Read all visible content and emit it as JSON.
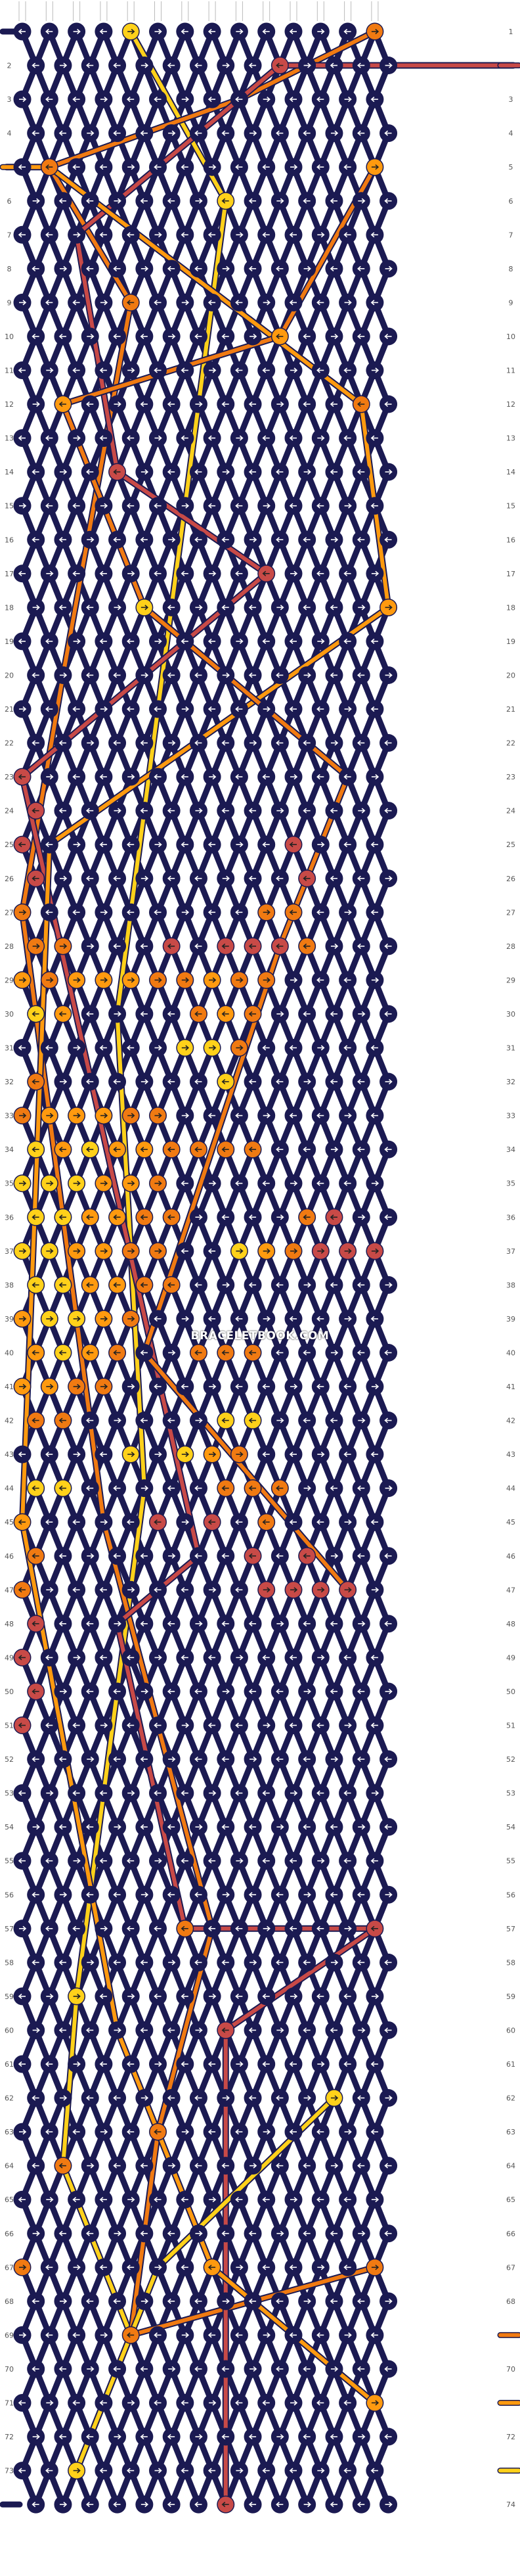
{
  "watermark": "BRACELETBOOK.COM",
  "row_numbers": [
    1,
    2,
    3,
    4,
    5,
    6,
    7,
    8,
    9,
    10,
    11,
    12,
    13,
    14,
    15,
    16,
    17,
    18,
    19,
    20,
    21,
    22,
    23,
    24,
    25,
    26,
    27,
    28,
    29,
    30,
    31,
    32,
    33,
    34,
    35,
    36,
    37,
    38,
    39,
    40,
    41,
    42,
    43,
    44,
    45,
    46,
    47,
    48,
    49,
    50,
    51,
    52,
    53,
    54,
    55,
    56,
    57,
    58,
    59,
    60,
    61,
    62,
    63,
    64,
    65,
    66,
    67,
    68,
    69,
    70,
    71,
    72,
    73,
    74
  ],
  "palette": {
    "navy": "#1b1a52",
    "orange": "#f07a12",
    "gold": "#ffd11a",
    "amber": "#ff9a0f",
    "coral": "#c84a47",
    "strand_light": "#eeeeee",
    "row_label": "#555555"
  },
  "knot_icons": [
    "arrow-right-icon",
    "arrow-left-icon",
    "forward-backward-icon",
    "backward-forward-icon"
  ],
  "knots": [
    {
      "row": 1,
      "col": 4,
      "color": "gold",
      "dir": "r"
    },
    {
      "row": 1,
      "col": 13,
      "color": "orange",
      "dir": "r"
    },
    {
      "row": 2,
      "col": 9,
      "color": "coral",
      "dir": "l"
    },
    {
      "row": 5,
      "col": 1,
      "color": "orange",
      "dir": "l"
    },
    {
      "row": 5,
      "col": 13,
      "color": "amber",
      "dir": "r"
    },
    {
      "row": 6,
      "col": 7,
      "color": "gold",
      "dir": "l"
    },
    {
      "row": 9,
      "col": 4,
      "color": "orange",
      "dir": "l"
    },
    {
      "row": 10,
      "col": 9,
      "color": "amber",
      "dir": "l"
    },
    {
      "row": 12,
      "col": 1,
      "color": "amber",
      "dir": "l"
    },
    {
      "row": 12,
      "col": 12,
      "color": "orange",
      "dir": "l"
    },
    {
      "row": 14,
      "col": 3,
      "color": "coral",
      "dir": "l"
    },
    {
      "row": 17,
      "col": 9,
      "color": "coral",
      "dir": "l"
    },
    {
      "row": 18,
      "col": 4,
      "color": "gold",
      "dir": "r"
    },
    {
      "row": 18,
      "col": 13,
      "color": "amber",
      "dir": "r"
    },
    {
      "row": 23,
      "col": 0,
      "color": "coral",
      "dir": "l"
    },
    {
      "row": 24,
      "col": 0,
      "color": "coral",
      "dir": "l"
    },
    {
      "row": 25,
      "col": 0,
      "color": "coral",
      "dir": "l"
    },
    {
      "row": 25,
      "col": 10,
      "color": "coral",
      "dir": "l"
    },
    {
      "row": 26,
      "col": 0,
      "color": "coral",
      "dir": "l"
    },
    {
      "row": 26,
      "col": 10,
      "color": "coral",
      "dir": "l"
    },
    {
      "row": 27,
      "col": 0,
      "color": "orange",
      "dir": "r"
    },
    {
      "row": 27,
      "col": 9,
      "color": "orange",
      "dir": "r"
    },
    {
      "row": 27,
      "col": 10,
      "color": "orange",
      "dir": "l"
    },
    {
      "row": 28,
      "col": 0,
      "color": "orange",
      "dir": "r"
    },
    {
      "row": 28,
      "col": 1,
      "color": "orange",
      "dir": "r"
    },
    {
      "row": 28,
      "col": 5,
      "color": "coral",
      "dir": "l"
    },
    {
      "row": 28,
      "col": 7,
      "color": "coral",
      "dir": "l"
    },
    {
      "row": 28,
      "col": 8,
      "color": "coral",
      "dir": "l"
    },
    {
      "row": 28,
      "col": 9,
      "color": "coral",
      "dir": "l"
    },
    {
      "row": 28,
      "col": 10,
      "color": "orange",
      "dir": "l"
    },
    {
      "row": 29,
      "col": 0,
      "color": "amber",
      "dir": "r"
    },
    {
      "row": 29,
      "col": 1,
      "color": "orange",
      "dir": "r"
    },
    {
      "row": 29,
      "col": 2,
      "color": "amber",
      "dir": "r"
    },
    {
      "row": 29,
      "col": 3,
      "color": "amber",
      "dir": "r"
    },
    {
      "row": 29,
      "col": 4,
      "color": "amber",
      "dir": "r"
    },
    {
      "row": 29,
      "col": 5,
      "color": "orange",
      "dir": "r"
    },
    {
      "row": 29,
      "col": 6,
      "color": "orange",
      "dir": "r"
    },
    {
      "row": 29,
      "col": 7,
      "color": "amber",
      "dir": "r"
    },
    {
      "row": 29,
      "col": 8,
      "color": "orange",
      "dir": "r"
    },
    {
      "row": 29,
      "col": 9,
      "color": "orange",
      "dir": "r"
    },
    {
      "row": 30,
      "col": 0,
      "color": "gold",
      "dir": "l"
    },
    {
      "row": 30,
      "col": 1,
      "color": "amber",
      "dir": "l"
    },
    {
      "row": 30,
      "col": 6,
      "color": "orange",
      "dir": "l"
    },
    {
      "row": 30,
      "col": 7,
      "color": "amber",
      "dir": "l"
    },
    {
      "row": 30,
      "col": 8,
      "color": "orange",
      "dir": "l"
    },
    {
      "row": 31,
      "col": 6,
      "color": "gold",
      "dir": "r"
    },
    {
      "row": 31,
      "col": 7,
      "color": "gold",
      "dir": "r"
    },
    {
      "row": 31,
      "col": 8,
      "color": "orange",
      "dir": "r"
    },
    {
      "row": 32,
      "col": 0,
      "color": "orange",
      "dir": "l"
    },
    {
      "row": 32,
      "col": 7,
      "color": "gold",
      "dir": "l"
    },
    {
      "row": 33,
      "col": 0,
      "color": "orange",
      "dir": "r"
    },
    {
      "row": 33,
      "col": 1,
      "color": "amber",
      "dir": "r"
    },
    {
      "row": 33,
      "col": 2,
      "color": "amber",
      "dir": "r"
    },
    {
      "row": 33,
      "col": 3,
      "color": "amber",
      "dir": "r"
    },
    {
      "row": 33,
      "col": 4,
      "color": "orange",
      "dir": "r"
    },
    {
      "row": 33,
      "col": 5,
      "color": "orange",
      "dir": "r"
    },
    {
      "row": 34,
      "col": 0,
      "color": "gold",
      "dir": "l"
    },
    {
      "row": 34,
      "col": 1,
      "color": "amber",
      "dir": "l"
    },
    {
      "row": 34,
      "col": 2,
      "color": "gold",
      "dir": "l"
    },
    {
      "row": 34,
      "col": 3,
      "color": "amber",
      "dir": "l"
    },
    {
      "row": 34,
      "col": 4,
      "color": "amber",
      "dir": "l"
    },
    {
      "row": 34,
      "col": 5,
      "color": "orange",
      "dir": "l"
    },
    {
      "row": 34,
      "col": 6,
      "color": "orange",
      "dir": "l"
    },
    {
      "row": 34,
      "col": 7,
      "color": "orange",
      "dir": "l"
    },
    {
      "row": 34,
      "col": 8,
      "color": "orange",
      "dir": "l"
    },
    {
      "row": 35,
      "col": 0,
      "color": "gold",
      "dir": "r"
    },
    {
      "row": 35,
      "col": 1,
      "color": "gold",
      "dir": "r"
    },
    {
      "row": 35,
      "col": 2,
      "color": "gold",
      "dir": "r"
    },
    {
      "row": 35,
      "col": 3,
      "color": "amber",
      "dir": "r"
    },
    {
      "row": 35,
      "col": 4,
      "color": "amber",
      "dir": "r"
    },
    {
      "row": 35,
      "col": 5,
      "color": "orange",
      "dir": "r"
    },
    {
      "row": 36,
      "col": 0,
      "color": "gold",
      "dir": "l"
    },
    {
      "row": 36,
      "col": 1,
      "color": "gold",
      "dir": "l"
    },
    {
      "row": 36,
      "col": 2,
      "color": "amber",
      "dir": "l"
    },
    {
      "row": 36,
      "col": 3,
      "color": "amber",
      "dir": "l"
    },
    {
      "row": 36,
      "col": 4,
      "color": "orange",
      "dir": "l"
    },
    {
      "row": 36,
      "col": 5,
      "color": "orange",
      "dir": "l"
    },
    {
      "row": 36,
      "col": 10,
      "color": "orange",
      "dir": "l"
    },
    {
      "row": 36,
      "col": 11,
      "color": "coral",
      "dir": "l"
    },
    {
      "row": 37,
      "col": 0,
      "color": "gold",
      "dir": "r"
    },
    {
      "row": 37,
      "col": 1,
      "color": "gold",
      "dir": "r"
    },
    {
      "row": 37,
      "col": 2,
      "color": "amber",
      "dir": "r"
    },
    {
      "row": 37,
      "col": 3,
      "color": "amber",
      "dir": "r"
    },
    {
      "row": 37,
      "col": 4,
      "color": "orange",
      "dir": "r"
    },
    {
      "row": 37,
      "col": 5,
      "color": "orange",
      "dir": "r"
    },
    {
      "row": 37,
      "col": 8,
      "color": "gold",
      "dir": "r"
    },
    {
      "row": 37,
      "col": 9,
      "color": "amber",
      "dir": "r"
    },
    {
      "row": 37,
      "col": 10,
      "color": "orange",
      "dir": "r"
    },
    {
      "row": 37,
      "col": 11,
      "color": "coral",
      "dir": "r"
    },
    {
      "row": 37,
      "col": 12,
      "color": "coral",
      "dir": "r"
    },
    {
      "row": 37,
      "col": 13,
      "color": "coral",
      "dir": "r"
    },
    {
      "row": 38,
      "col": 0,
      "color": "gold",
      "dir": "l"
    },
    {
      "row": 38,
      "col": 1,
      "color": "gold",
      "dir": "l"
    },
    {
      "row": 38,
      "col": 2,
      "color": "amber",
      "dir": "l"
    },
    {
      "row": 38,
      "col": 3,
      "color": "amber",
      "dir": "l"
    },
    {
      "row": 38,
      "col": 4,
      "color": "orange",
      "dir": "l"
    },
    {
      "row": 38,
      "col": 5,
      "color": "orange",
      "dir": "l"
    },
    {
      "row": 39,
      "col": 0,
      "color": "amber",
      "dir": "r"
    },
    {
      "row": 39,
      "col": 1,
      "color": "gold",
      "dir": "r"
    },
    {
      "row": 39,
      "col": 2,
      "color": "gold",
      "dir": "r"
    },
    {
      "row": 39,
      "col": 3,
      "color": "amber",
      "dir": "r"
    },
    {
      "row": 39,
      "col": 4,
      "color": "orange",
      "dir": "r"
    },
    {
      "row": 40,
      "col": 0,
      "color": "amber",
      "dir": "l"
    },
    {
      "row": 40,
      "col": 1,
      "color": "gold",
      "dir": "l"
    },
    {
      "row": 40,
      "col": 2,
      "color": "amber",
      "dir": "l"
    },
    {
      "row": 40,
      "col": 3,
      "color": "orange",
      "dir": "l"
    },
    {
      "row": 40,
      "col": 6,
      "color": "orange",
      "dir": "l"
    },
    {
      "row": 40,
      "col": 7,
      "color": "orange",
      "dir": "l"
    },
    {
      "row": 40,
      "col": 8,
      "color": "orange",
      "dir": "l"
    },
    {
      "row": 41,
      "col": 0,
      "color": "amber",
      "dir": "r"
    },
    {
      "row": 41,
      "col": 1,
      "color": "amber",
      "dir": "r"
    },
    {
      "row": 41,
      "col": 2,
      "color": "orange",
      "dir": "r"
    },
    {
      "row": 41,
      "col": 3,
      "color": "orange",
      "dir": "r"
    },
    {
      "row": 42,
      "col": 0,
      "color": "orange",
      "dir": "l"
    },
    {
      "row": 42,
      "col": 1,
      "color": "orange",
      "dir": "l"
    },
    {
      "row": 42,
      "col": 7,
      "color": "gold",
      "dir": "l"
    },
    {
      "row": 42,
      "col": 8,
      "color": "gold",
      "dir": "l"
    },
    {
      "row": 43,
      "col": 4,
      "color": "gold",
      "dir": "r"
    },
    {
      "row": 43,
      "col": 6,
      "color": "gold",
      "dir": "r"
    },
    {
      "row": 43,
      "col": 7,
      "color": "amber",
      "dir": "r"
    },
    {
      "row": 43,
      "col": 8,
      "color": "orange",
      "dir": "r"
    },
    {
      "row": 44,
      "col": 0,
      "color": "gold",
      "dir": "l"
    },
    {
      "row": 44,
      "col": 1,
      "color": "gold",
      "dir": "l"
    },
    {
      "row": 44,
      "col": 7,
      "color": "orange",
      "dir": "l"
    },
    {
      "row": 44,
      "col": 8,
      "color": "orange",
      "dir": "l"
    },
    {
      "row": 44,
      "col": 9,
      "color": "orange",
      "dir": "l"
    },
    {
      "row": 45,
      "col": 0,
      "color": "amber",
      "dir": "l"
    },
    {
      "row": 45,
      "col": 5,
      "color": "coral",
      "dir": "l"
    },
    {
      "row": 45,
      "col": 7,
      "color": "coral",
      "dir": "l"
    },
    {
      "row": 45,
      "col": 9,
      "color": "orange",
      "dir": "l"
    },
    {
      "row": 46,
      "col": 0,
      "color": "orange",
      "dir": "l"
    },
    {
      "row": 46,
      "col": 8,
      "color": "coral",
      "dir": "l"
    },
    {
      "row": 46,
      "col": 10,
      "color": "coral",
      "dir": "l"
    },
    {
      "row": 47,
      "col": 0,
      "color": "orange",
      "dir": "l"
    },
    {
      "row": 47,
      "col": 9,
      "color": "coral",
      "dir": "r"
    },
    {
      "row": 47,
      "col": 10,
      "color": "coral",
      "dir": "r"
    },
    {
      "row": 47,
      "col": 11,
      "color": "coral",
      "dir": "r"
    },
    {
      "row": 47,
      "col": 12,
      "color": "coral",
      "dir": "r"
    },
    {
      "row": 48,
      "col": 0,
      "color": "coral",
      "dir": "l"
    },
    {
      "row": 49,
      "col": 0,
      "color": "coral",
      "dir": "l"
    },
    {
      "row": 50,
      "col": 0,
      "color": "coral",
      "dir": "l"
    },
    {
      "row": 51,
      "col": 0,
      "color": "coral",
      "dir": "l"
    },
    {
      "row": 57,
      "col": 6,
      "color": "orange",
      "dir": "l"
    },
    {
      "row": 57,
      "col": 13,
      "color": "coral",
      "dir": "l"
    },
    {
      "row": 59,
      "col": 2,
      "color": "gold",
      "dir": "r"
    },
    {
      "row": 60,
      "col": 7,
      "color": "coral",
      "dir": "l"
    },
    {
      "row": 62,
      "col": 11,
      "color": "gold",
      "dir": "r"
    },
    {
      "row": 63,
      "col": 5,
      "color": "orange",
      "dir": "l"
    },
    {
      "row": 64,
      "col": 1,
      "color": "orange",
      "dir": "l"
    },
    {
      "row": 67,
      "col": 0,
      "color": "orange",
      "dir": "r"
    },
    {
      "row": 67,
      "col": 7,
      "color": "amber",
      "dir": "l"
    },
    {
      "row": 67,
      "col": 13,
      "color": "orange",
      "dir": "r"
    },
    {
      "row": 69,
      "col": 4,
      "color": "orange",
      "dir": "l"
    },
    {
      "row": 71,
      "col": 13,
      "color": "amber",
      "dir": "r"
    },
    {
      "row": 73,
      "col": 2,
      "color": "gold",
      "dir": "r"
    },
    {
      "row": 74,
      "col": 7,
      "color": "coral",
      "dir": "l"
    }
  ],
  "edge_ends": [
    {
      "row": 1,
      "side": "left",
      "color": "navy"
    },
    {
      "row": 2,
      "side": "right",
      "color": "coral"
    },
    {
      "row": 5,
      "side": "left",
      "color": "amber"
    },
    {
      "row": 69,
      "side": "right",
      "color": "orange"
    },
    {
      "row": 71,
      "side": "right",
      "color": "amber"
    },
    {
      "row": 73,
      "side": "right",
      "color": "gold"
    },
    {
      "row": 74,
      "side": "left",
      "color": "navy"
    }
  ],
  "strands": [
    {
      "color": "gold",
      "points": [
        [
          4,
          1
        ],
        [
          7,
          6
        ],
        [
          3,
          30
        ],
        [
          4,
          44
        ],
        [
          2,
          59
        ],
        [
          1,
          64
        ],
        [
          4,
          69
        ],
        [
          2,
          73
        ]
      ]
    },
    {
      "color": "orange",
      "points": [
        [
          13,
          1
        ],
        [
          8,
          3
        ],
        [
          1,
          5
        ],
        [
          4,
          9
        ],
        [
          1,
          20
        ],
        [
          0,
          27
        ],
        [
          3,
          45
        ],
        [
          7,
          57
        ],
        [
          5,
          63
        ],
        [
          4,
          69
        ],
        [
          13,
          67
        ]
      ]
    },
    {
      "color": "coral",
      "points": [
        [
          14,
          2
        ],
        [
          9,
          2
        ],
        [
          2,
          7
        ],
        [
          3,
          14
        ],
        [
          9,
          17
        ],
        [
          0,
          23
        ],
        [
          6,
          46
        ],
        [
          3,
          48
        ],
        [
          6,
          57
        ],
        [
          13,
          57
        ],
        [
          7,
          60
        ],
        [
          7,
          74
        ]
      ]
    },
    {
      "color": "amber",
      "points": [
        [
          -1,
          5
        ],
        [
          1,
          5
        ],
        [
          12,
          12
        ],
        [
          13,
          18
        ],
        [
          1,
          25
        ],
        [
          0,
          45
        ],
        [
          3,
          60
        ],
        [
          7,
          67
        ],
        [
          13,
          71
        ]
      ]
    },
    {
      "color": "orange",
      "points": [
        [
          13,
          5
        ],
        [
          9,
          10
        ],
        [
          1,
          12
        ],
        [
          4,
          18
        ],
        [
          12,
          23
        ],
        [
          9,
          28
        ],
        [
          4,
          40
        ],
        [
          12,
          47
        ]
      ]
    },
    {
      "color": "gold",
      "points": [
        [
          11,
          62
        ],
        [
          5,
          67
        ],
        [
          2,
          73
        ]
      ]
    }
  ]
}
